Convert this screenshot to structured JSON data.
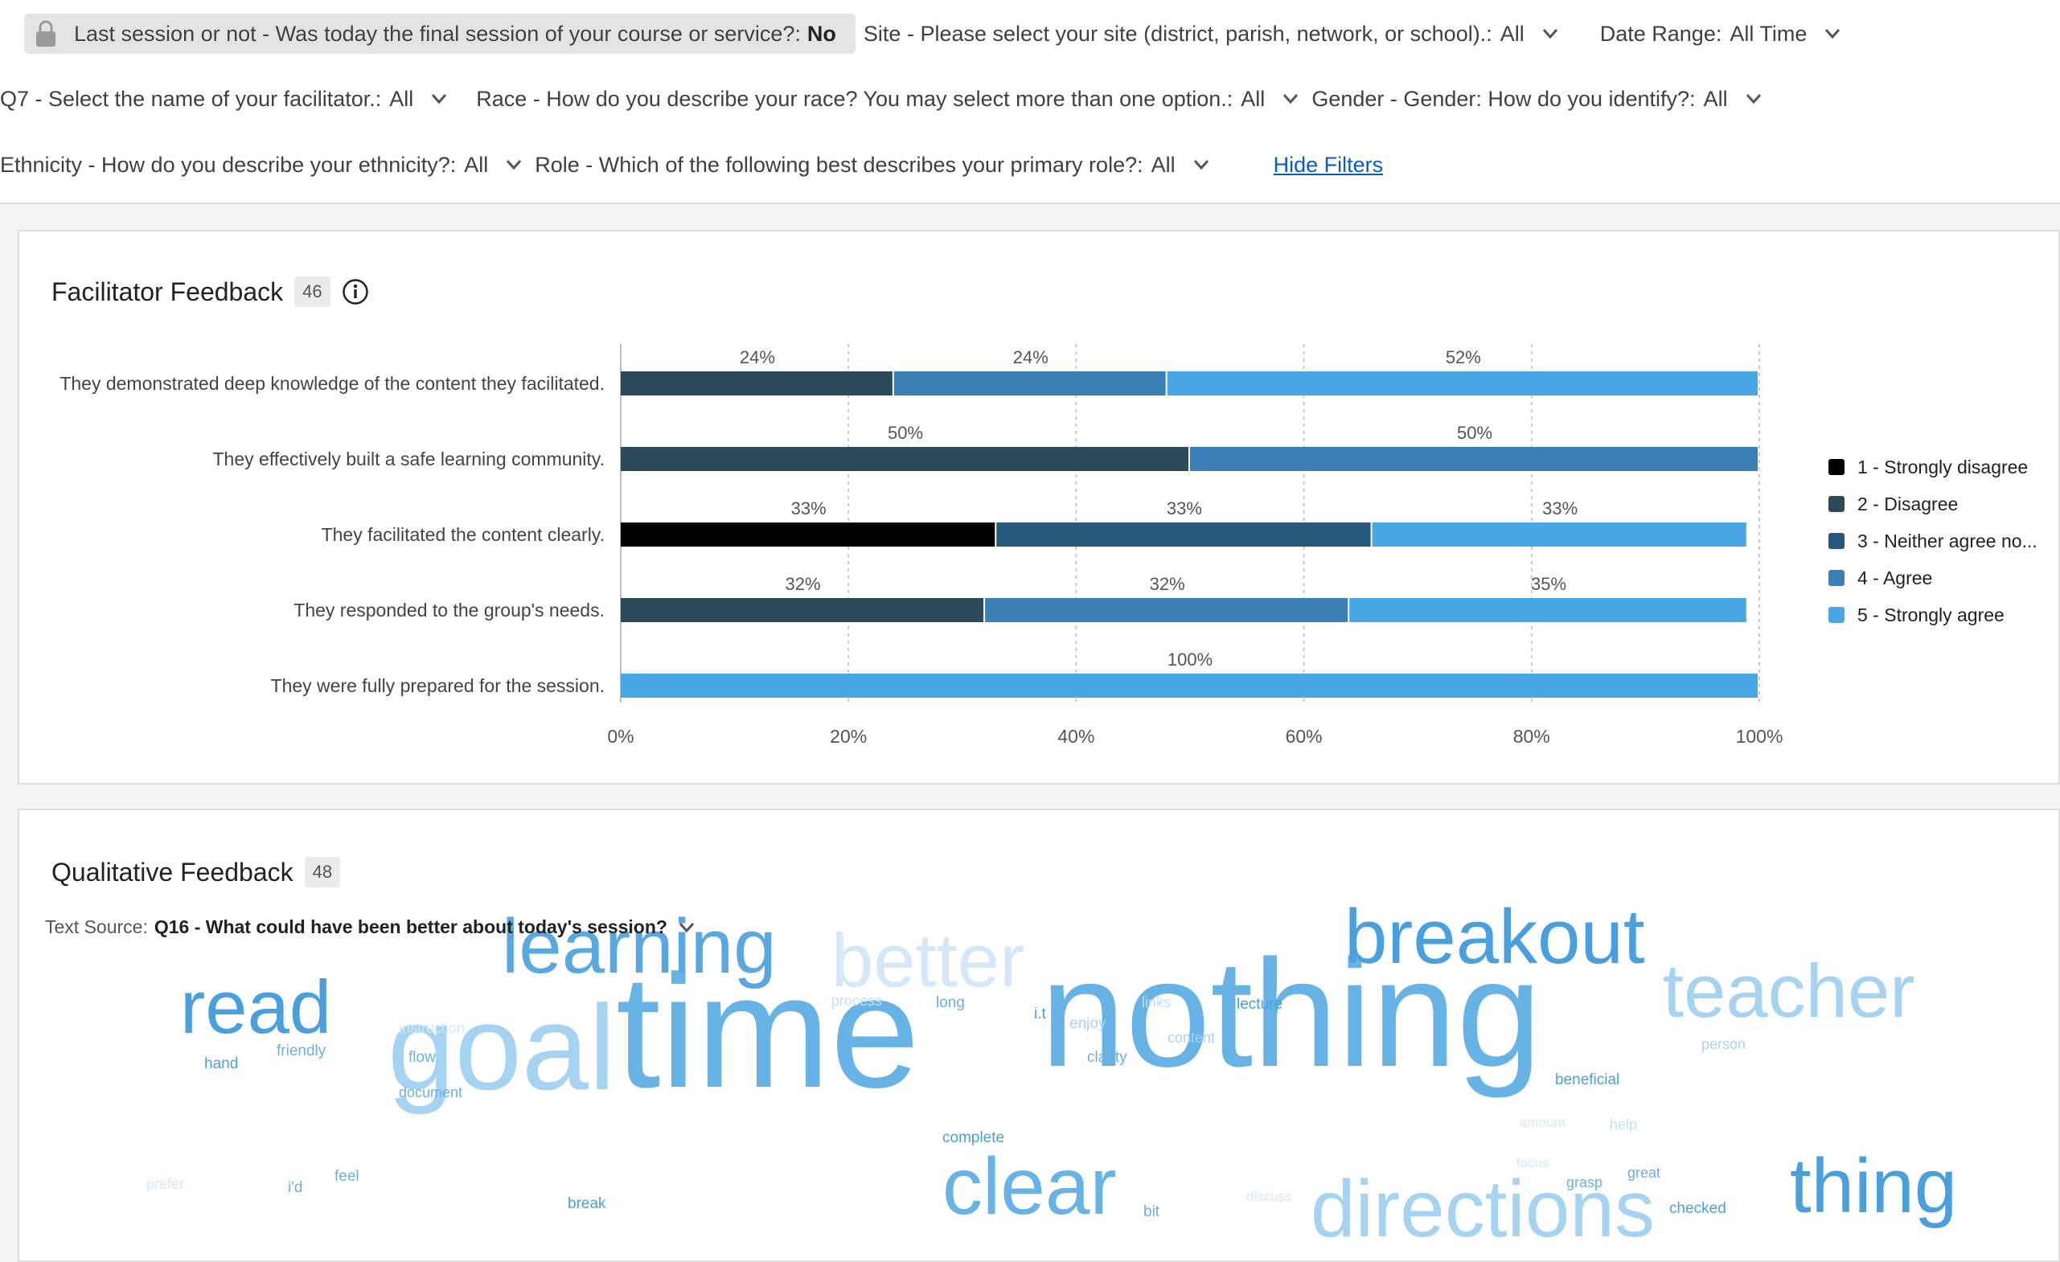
{
  "filters": {
    "locked": {
      "label": "Last session or not - Was today the final session of your course or service?:",
      "value": "No"
    },
    "row1": [
      {
        "label": "Site - Please select your site (district, parish, network, or school).:",
        "value": "All"
      },
      {
        "label": "Date Range:",
        "value": "All Time"
      }
    ],
    "row2": [
      {
        "label": "Q7 - Select the name of your facilitator.:",
        "value": "All"
      },
      {
        "label": "Race - How do you describe your race? You may select more than one option.:",
        "value": "All"
      },
      {
        "label": "Gender - Gender: How do you identify?:",
        "value": "All"
      }
    ],
    "row3": [
      {
        "label": "Ethnicity - How do you describe your ethnicity?:",
        "value": "All"
      },
      {
        "label": "Role - Which of the following best describes your primary role?:",
        "value": "All"
      }
    ],
    "hide_label": "Hide Filters"
  },
  "facilitator": {
    "title": "Facilitator Feedback",
    "count": "46"
  },
  "chart_data": {
    "type": "bar",
    "orientation": "horizontal-stacked",
    "categories": [
      "They demonstrated deep knowledge of the content they facilitated.",
      "They effectively built a safe learning community.",
      "They facilitated the content clearly.",
      "They responded to the group's needs.",
      "They were fully prepared for the session."
    ],
    "series": [
      {
        "name": "1 - Strongly disagree",
        "color": "#000000",
        "values": [
          0,
          0,
          33,
          0,
          0
        ]
      },
      {
        "name": "2 - Disagree",
        "color": "#2c4a5a",
        "values": [
          24,
          50,
          0,
          32,
          0
        ]
      },
      {
        "name": "3 - Neither agree no...",
        "color": "#265979",
        "values": [
          0,
          0,
          33,
          0,
          0
        ]
      },
      {
        "name": "4 - Agree",
        "color": "#3a7fb5",
        "values": [
          24,
          50,
          0,
          32,
          0
        ]
      },
      {
        "name": "5 - Strongly agree",
        "color": "#4aa7e6",
        "values": [
          52,
          0,
          33,
          35,
          100
        ]
      }
    ],
    "xticks": [
      "0%",
      "20%",
      "40%",
      "60%",
      "80%",
      "100%"
    ],
    "xlim": [
      0,
      100
    ],
    "grid": true,
    "legend_position": "right"
  },
  "qualitative": {
    "title": "Qualitative Feedback",
    "count": "48",
    "source_label": "Text Source:",
    "source_value": "Q16 - What could have been better about today's session?",
    "words": [
      {
        "text": "nothing",
        "color": "#68b3e6"
      },
      {
        "text": "time",
        "color": "#68b3e6"
      },
      {
        "text": "goal",
        "color": "#a7d3f2"
      },
      {
        "text": "breakout",
        "color": "#4a9fdd"
      },
      {
        "text": "learning",
        "color": "#5aa8e0"
      },
      {
        "text": "better",
        "color": "#d4e8f8"
      },
      {
        "text": "teacher",
        "color": "#a7d3f2"
      },
      {
        "text": "read",
        "color": "#4a9fdd"
      },
      {
        "text": "clear",
        "color": "#68b3e6"
      },
      {
        "text": "directions",
        "color": "#a7d3f2"
      },
      {
        "text": "thing",
        "color": "#4a9fdd"
      },
      {
        "text": "process",
        "color": "#c5e0f5"
      },
      {
        "text": "long",
        "color": "#6ab0e0"
      },
      {
        "text": "i.t",
        "color": "#4a9fdd"
      },
      {
        "text": "links",
        "color": "#c5e0f5"
      },
      {
        "text": "lecture",
        "color": "#4a9fdd"
      },
      {
        "text": "enjoy",
        "color": "#a7d3f2"
      },
      {
        "text": "content",
        "color": "#a7d3f2"
      },
      {
        "text": "clarity",
        "color": "#6ab0e0"
      },
      {
        "text": "instruction",
        "color": "#d4e8f8"
      },
      {
        "text": "friendly",
        "color": "#6ab0e0"
      },
      {
        "text": "hand",
        "color": "#4a9fdd"
      },
      {
        "text": "flow",
        "color": "#6ab0e0"
      },
      {
        "text": "document",
        "color": "#6ab0e0"
      },
      {
        "text": "person",
        "color": "#a7d3f2"
      },
      {
        "text": "beneficial",
        "color": "#4a9fdd"
      },
      {
        "text": "amount",
        "color": "#d4e8f8"
      },
      {
        "text": "help",
        "color": "#c5e0f5"
      },
      {
        "text": "complete",
        "color": "#4a9fdd"
      },
      {
        "text": "focus",
        "color": "#d4e8f8"
      },
      {
        "text": "grasp",
        "color": "#6ab0e0"
      },
      {
        "text": "great",
        "color": "#6ab0e0"
      },
      {
        "text": "feel",
        "color": "#6ab0e0"
      },
      {
        "text": "prefer",
        "color": "#d4e8f8"
      },
      {
        "text": "i'd",
        "color": "#6ab0e0"
      },
      {
        "text": "break",
        "color": "#4a9fdd"
      },
      {
        "text": "discuss",
        "color": "#d4e8f8"
      },
      {
        "text": "bit",
        "color": "#6ab0e0"
      },
      {
        "text": "checked",
        "color": "#4a9fdd"
      }
    ]
  }
}
